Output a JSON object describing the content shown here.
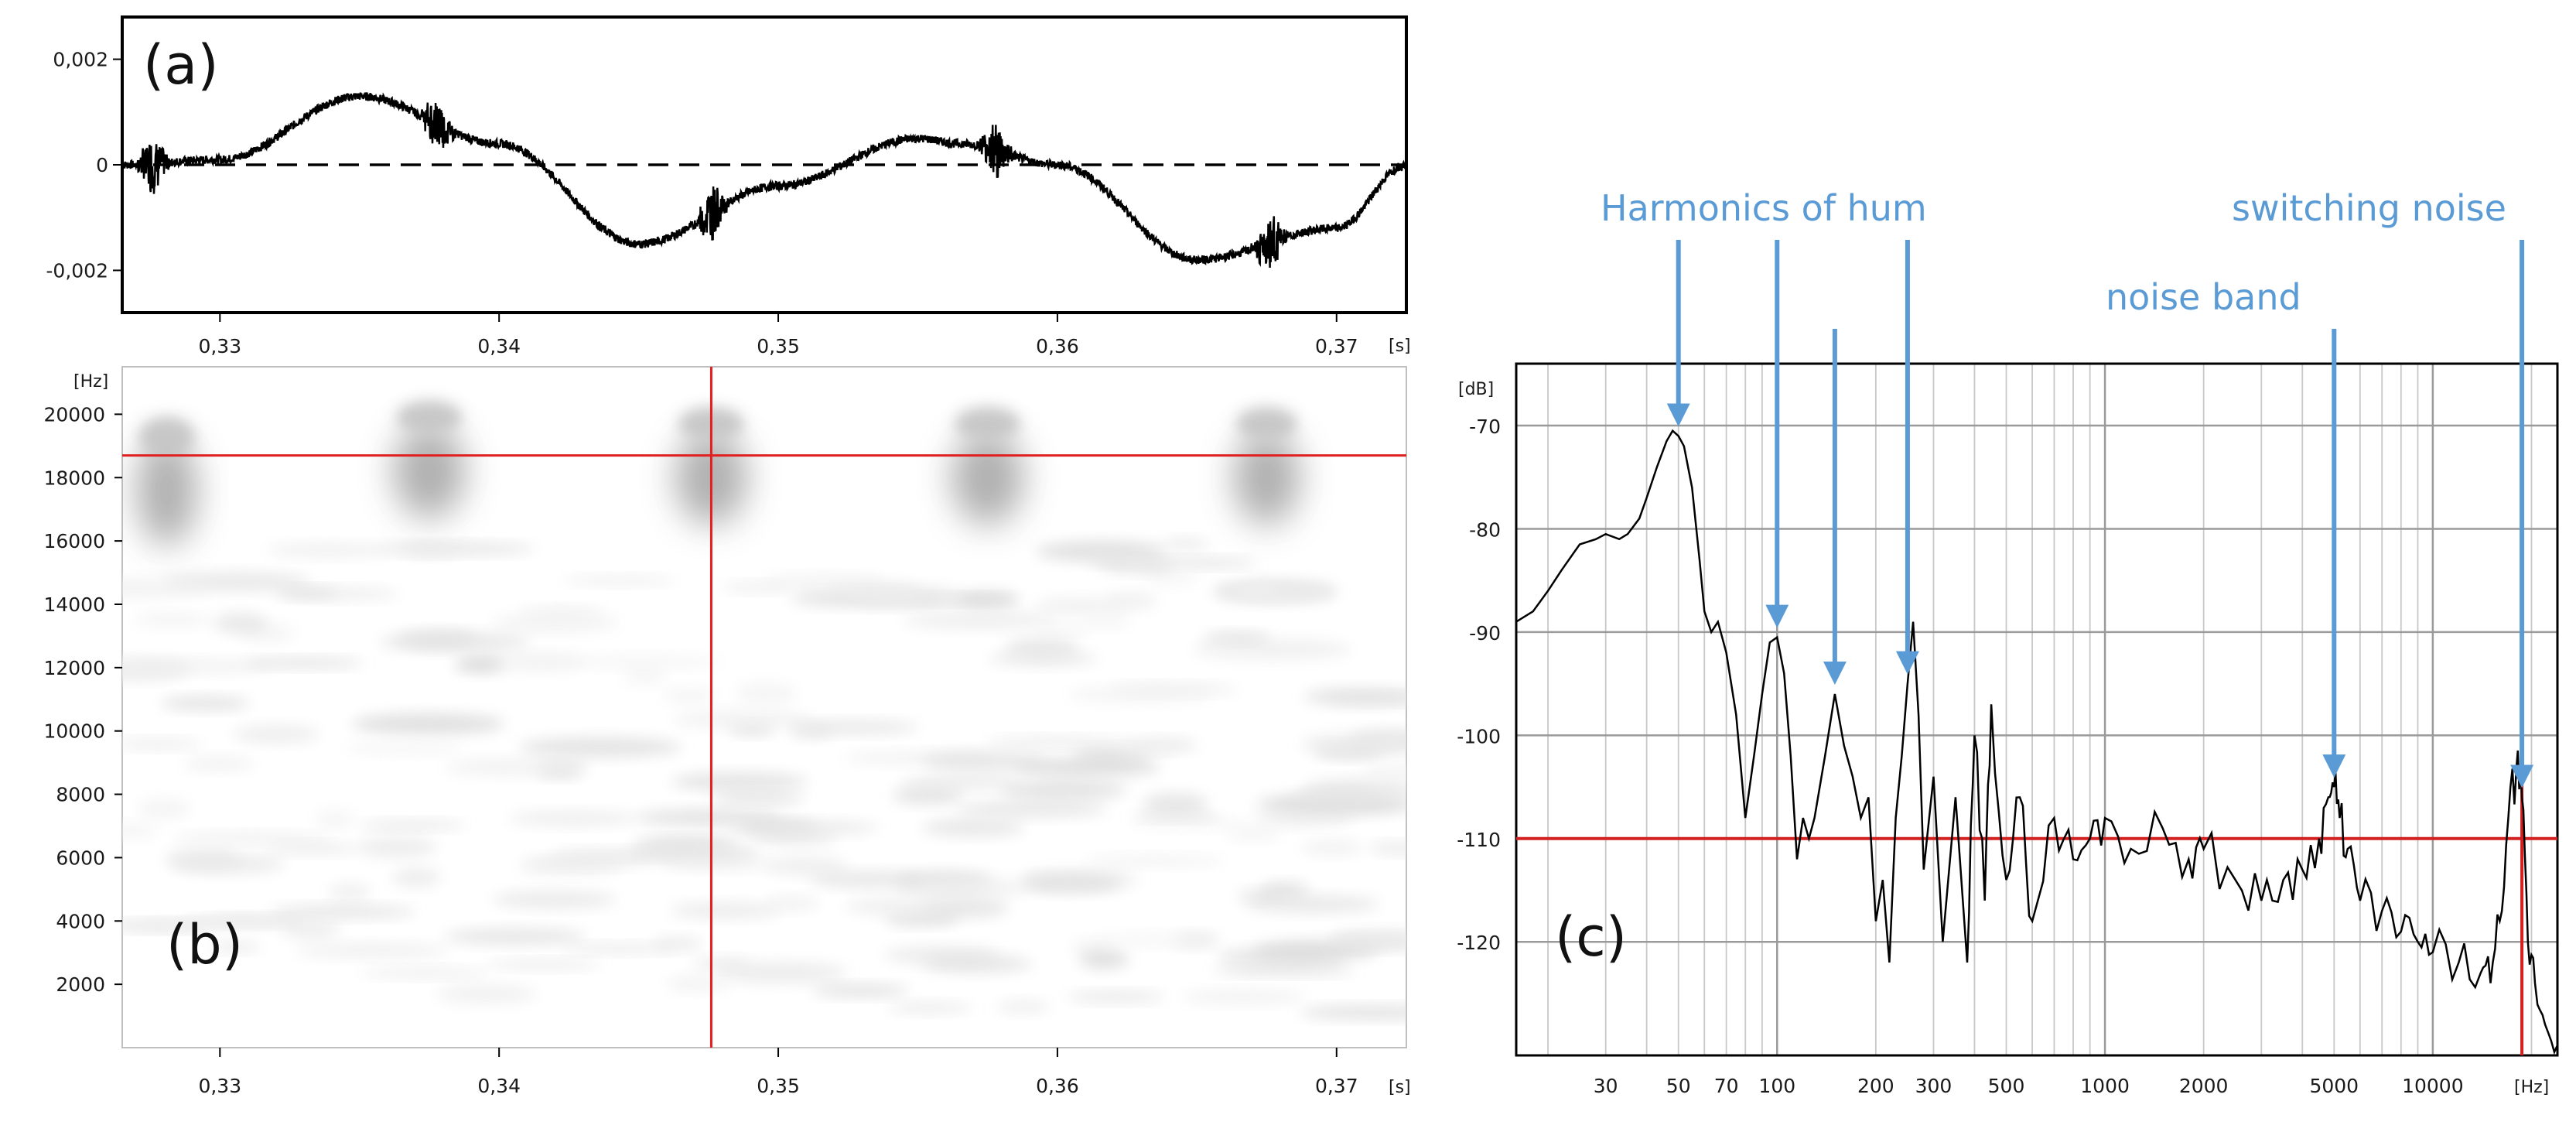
{
  "chart_data": [
    {
      "panel_label": "(a)",
      "type": "line",
      "x_unit": "[s]",
      "xlim": [
        0.3265,
        0.3725
      ],
      "ylim": [
        -0.0028,
        0.0028
      ],
      "x_ticks": [
        0.33,
        0.34,
        0.35,
        0.36,
        0.37
      ],
      "x_tick_labels": [
        "0,33",
        "0,34",
        "0,35",
        "0,36",
        "0,37"
      ],
      "y_ticks": [
        0.002,
        0,
        -0.002
      ],
      "y_tick_labels": [
        "0,002",
        "0",
        "-0,002"
      ],
      "reference_line": {
        "y": 0,
        "style": "dashed"
      },
      "series": [
        {
          "x": [
            0.3265,
            0.33,
            0.335,
            0.34,
            0.345,
            0.35,
            0.355,
            0.3565,
            0.36,
            0.365,
            0.37,
            0.3725
          ],
          "y": [
            0.0,
            0.0001,
            0.0013,
            0.0004,
            -0.0015,
            -0.0004,
            0.0005,
            0.0004,
            0.0,
            -0.0018,
            -0.0012,
            0.0
          ]
        }
      ],
      "noise_bursts_x": [
        0.3276,
        0.3378,
        0.3476,
        0.3578,
        0.3676
      ]
    },
    {
      "panel_label": "(b)",
      "type": "heatmap",
      "x_unit": "[s]",
      "y_unit": "[Hz]",
      "xlim": [
        0.3265,
        0.3725
      ],
      "ylim": [
        0,
        21500
      ],
      "x_ticks": [
        0.33,
        0.34,
        0.35,
        0.36,
        0.37
      ],
      "x_tick_labels": [
        "0,33",
        "0,34",
        "0,35",
        "0,36",
        "0,37"
      ],
      "y_ticks": [
        2000,
        4000,
        6000,
        8000,
        10000,
        12000,
        14000,
        16000,
        18000,
        20000
      ],
      "y_tick_labels": [
        "2000",
        "4000",
        "6000",
        "8000",
        "10000",
        "12000",
        "14000",
        "16000",
        "18000",
        "20000"
      ],
      "cursor": {
        "x": 0.3476,
        "y": 18700
      },
      "energy_blobs": [
        {
          "t": 0.3281,
          "f": 17600,
          "t_width": 0.0022,
          "f_height": 3500
        },
        {
          "t": 0.3375,
          "f": 18200,
          "t_width": 0.0026,
          "f_height": 3000
        },
        {
          "t": 0.3476,
          "f": 18000,
          "t_width": 0.0026,
          "f_height": 3000
        },
        {
          "t": 0.3575,
          "f": 18000,
          "t_width": 0.0026,
          "f_height": 3000
        },
        {
          "t": 0.3675,
          "f": 18000,
          "t_width": 0.0024,
          "f_height": 3000
        }
      ]
    },
    {
      "panel_label": "(c)",
      "type": "line",
      "x_scale": "log",
      "x_unit": "[Hz]",
      "y_unit": "[dB]",
      "xlim": [
        16,
        24000
      ],
      "ylim": [
        -131,
        -64
      ],
      "x_ticks": [
        30,
        50,
        70,
        100,
        200,
        300,
        500,
        1000,
        2000,
        5000,
        10000
      ],
      "x_tick_labels": [
        "30",
        "50",
        "70",
        "100",
        "200",
        "300",
        "500",
        "1000",
        "2000",
        "5000",
        "10000"
      ],
      "y_ticks": [
        -70,
        -80,
        -90,
        -100,
        -110,
        -120
      ],
      "y_tick_labels": [
        "-70",
        "-80",
        "-90",
        "-100",
        "-110",
        "-120"
      ],
      "cursor": {
        "x": 18700,
        "y": -110
      },
      "series": [
        {
          "x": [
            16,
            18,
            20,
            22,
            25,
            28,
            30,
            33,
            35,
            38,
            40,
            43,
            46,
            48,
            50,
            52,
            55,
            58,
            60,
            63,
            66,
            70,
            75,
            80,
            85,
            90,
            95,
            100,
            105,
            110,
            115,
            120,
            125,
            130,
            140,
            150,
            160,
            170,
            180,
            190,
            200,
            210,
            220,
            230,
            240,
            250,
            260,
            270,
            280,
            300,
            320,
            350,
            380,
            400,
            430,
            450,
            500,
            550,
            600,
            700,
            800,
            900,
            1000,
            1200,
            1500,
            1800,
            2000,
            2500,
            3000,
            3500,
            4000,
            4500,
            4800,
            5000,
            5200,
            5500,
            6000,
            7000,
            8000,
            9000,
            10000,
            12000,
            14000,
            15000,
            16000,
            17000,
            18000,
            18700,
            19500,
            20500,
            22000,
            24000
          ],
          "y": [
            -89,
            -88,
            -86,
            -84,
            -81.5,
            -81,
            -80.5,
            -81,
            -80.5,
            -79,
            -77,
            -74,
            -71.5,
            -70.5,
            -71,
            -72,
            -76,
            -83,
            -88,
            -90,
            -89,
            -92,
            -98,
            -108,
            -102,
            -96,
            -91,
            -90.5,
            -94,
            -102,
            -112,
            -108,
            -110,
            -108,
            -102,
            -96,
            -101,
            -104,
            -108,
            -106,
            -118,
            -114,
            -122,
            -108,
            -102,
            -95,
            -89,
            -98,
            -113,
            -104,
            -120,
            -106,
            -122,
            -100,
            -116,
            -97,
            -114,
            -106,
            -118,
            -108,
            -112,
            -110,
            -108,
            -111,
            -109,
            -112,
            -111,
            -114,
            -116,
            -114,
            -113,
            -110,
            -106,
            -105,
            -108,
            -111,
            -116,
            -117,
            -119,
            -120,
            -121,
            -122,
            -123,
            -124,
            -118,
            -108,
            -103,
            -106,
            -120,
            -124,
            -128,
            -130
          ]
        }
      ],
      "annotations": [
        {
          "text": "Harmonics of hum",
          "points_x": [
            50,
            100,
            150,
            250
          ]
        },
        {
          "text": "noise band",
          "points_x": [
            5000
          ]
        },
        {
          "text": "switching noise",
          "points_x": [
            18700
          ]
        }
      ]
    }
  ]
}
